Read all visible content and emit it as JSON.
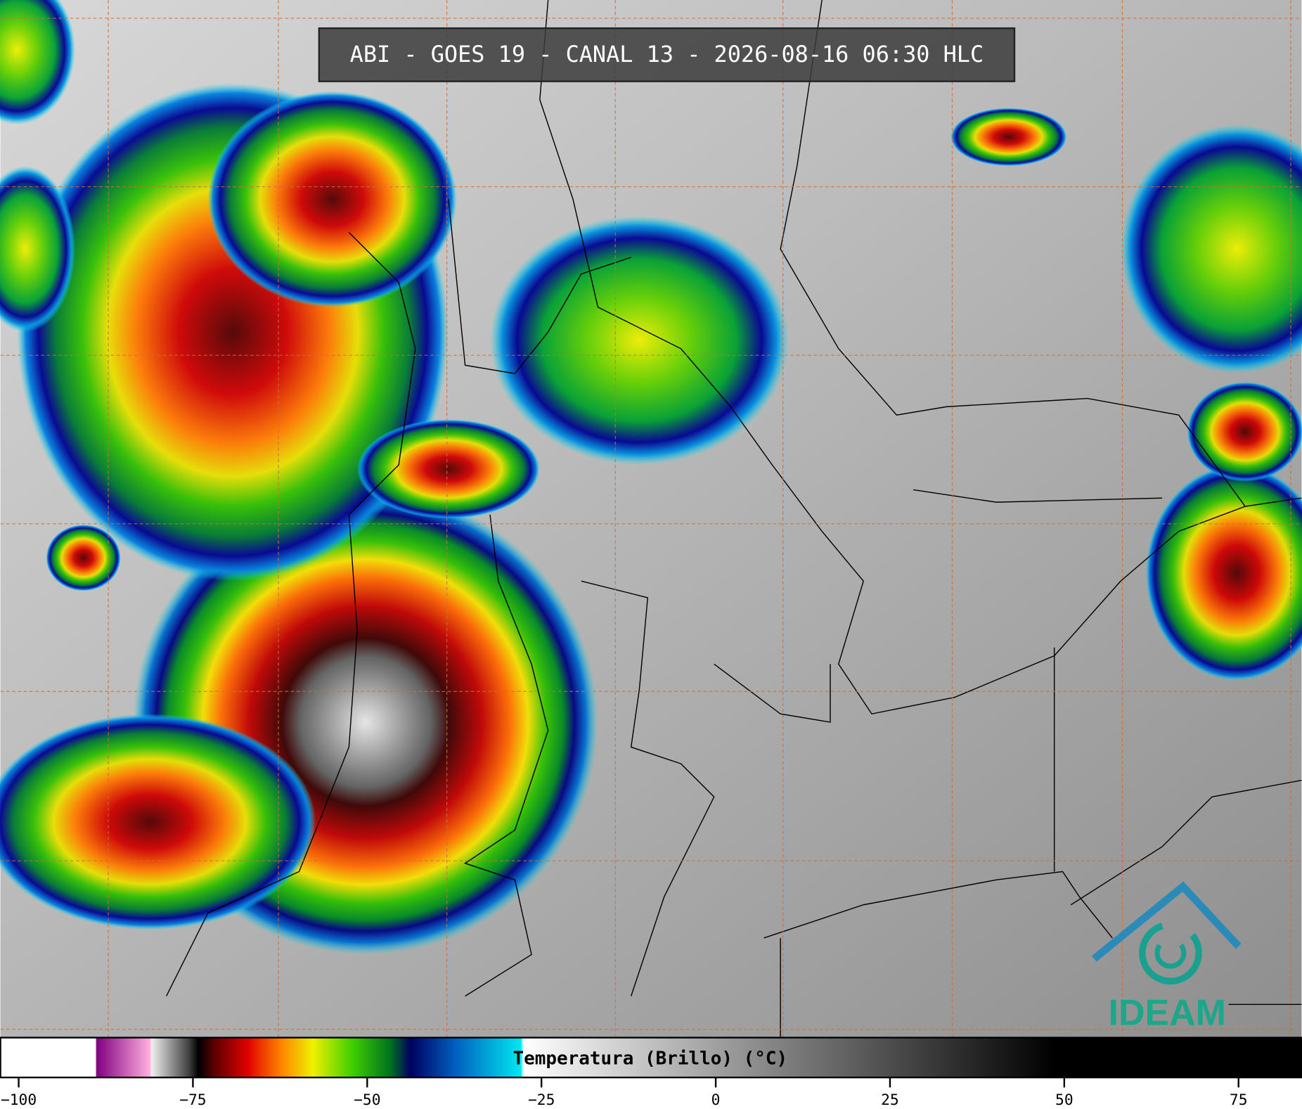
{
  "header": {
    "title": "ABI - GOES 19 - CANAL 13 - 2026-08-16 06:30 HLC"
  },
  "colorbar": {
    "label": "Temperatura (Brillo) (°C)",
    "lim": [
      -100,
      87.5
    ],
    "ticks": [
      {
        "value": -100,
        "label": "−100"
      },
      {
        "value": -75,
        "label": "−75"
      },
      {
        "value": -50,
        "label": "−50"
      },
      {
        "value": -25,
        "label": "−25"
      },
      0,
      25,
      50,
      75
    ]
  },
  "logo": {
    "text": "IDEAM"
  }
}
